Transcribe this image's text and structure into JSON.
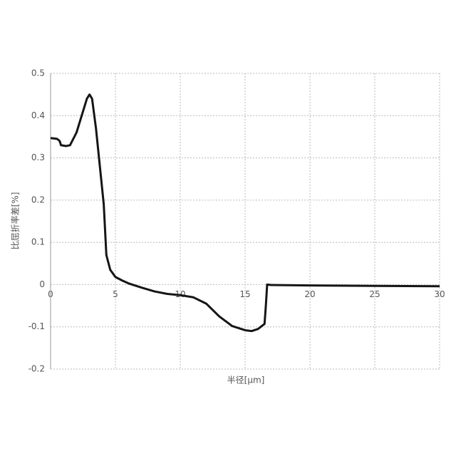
{
  "chart_data": {
    "type": "line",
    "x_label": "半径[μm]",
    "y_label": "比屈折率差[%]",
    "x": [
      0,
      0.5,
      0.7,
      0.8,
      1.2,
      1.5,
      2.0,
      2.5,
      2.8,
      3.0,
      3.2,
      3.5,
      3.8,
      4.1,
      4.2,
      4.3,
      4.6,
      5.0,
      5.5,
      6,
      7,
      8,
      9,
      10,
      11,
      12,
      13,
      14,
      15,
      15.5,
      16,
      16.5,
      16.6,
      16.7,
      17,
      20,
      25,
      30
    ],
    "values": [
      0.347,
      0.345,
      0.34,
      0.33,
      0.328,
      0.33,
      0.36,
      0.41,
      0.44,
      0.45,
      0.44,
      0.37,
      0.28,
      0.19,
      0.13,
      0.07,
      0.035,
      0.018,
      0.01,
      0.003,
      -0.007,
      -0.016,
      -0.022,
      -0.025,
      -0.03,
      -0.045,
      -0.075,
      -0.098,
      -0.108,
      -0.11,
      -0.105,
      -0.093,
      -0.05,
      0.0,
      -0.001,
      -0.002,
      -0.003,
      -0.004
    ],
    "color": "#151515",
    "xlim": [
      0,
      30
    ],
    "xticks": [
      0,
      5,
      10,
      15,
      20,
      25,
      30
    ],
    "ylim": [
      -0.2,
      0.5
    ],
    "yticks": [
      -0.2,
      -0.1,
      0,
      0.1,
      0.2,
      0.3,
      0.4,
      0.5
    ],
    "grid": true
  }
}
